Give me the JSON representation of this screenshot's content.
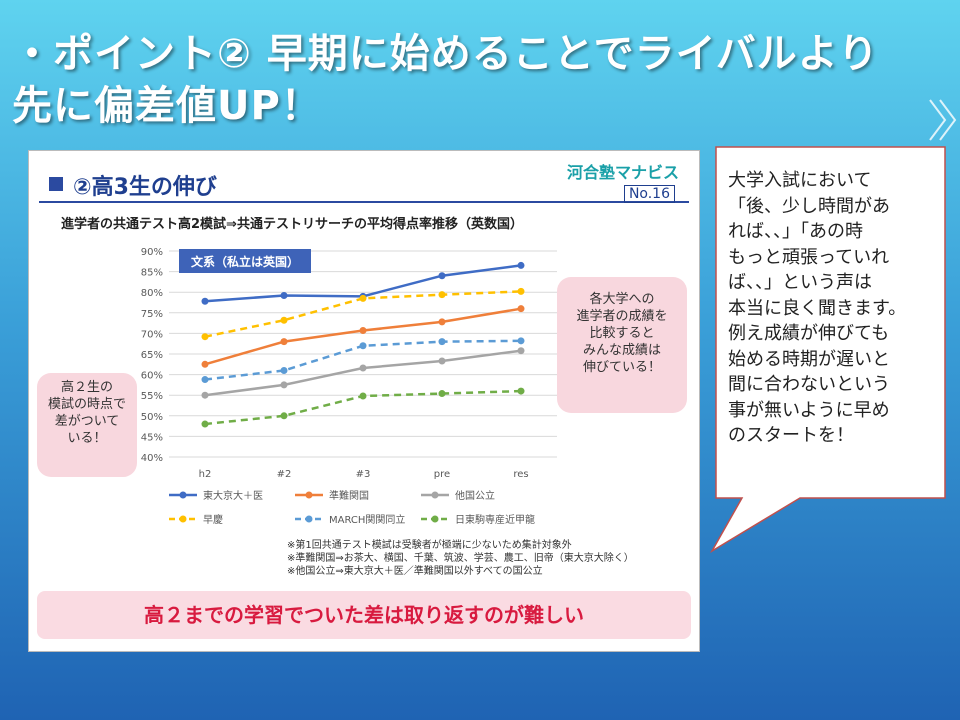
{
  "slide": {
    "title": "・ポイント② 早期に始めることでライバルより先に偏差値UP！"
  },
  "card": {
    "header_title": "②高3生の伸び",
    "logo": "河合塾マナビス",
    "page_no": "No.16",
    "chart_subtitle": "進学者の共通テスト高2模試⇒共通テストリサーチの平均得点率推移（英数国）",
    "bubble_left": [
      "高２生の",
      "模試の時点で",
      "差がついて",
      "いる！"
    ],
    "bubble_right": [
      "各大学への",
      "進学者の成績を",
      "比較すると",
      "みんな成績は",
      "伸びている！"
    ],
    "notes": [
      "※第1回共通テスト模試は受験者が極端に少ないため集計対象外",
      "※準難関国⇒お茶大、横国、千葉、筑波、学芸、農工、旧帝（東大京大除く）",
      "※他国公立⇒東大京大＋医／準難関国以外すべての国公立"
    ],
    "banner": "高２までの学習でついた差は取り返すのが難しい"
  },
  "chart_data": {
    "type": "line",
    "annotation": "文系（私立は英国）",
    "categories": [
      "h2",
      "#2",
      "#3",
      "pre",
      "res"
    ],
    "ylim": [
      40,
      90
    ],
    "yticks": [
      "40%",
      "45%",
      "50%",
      "55%",
      "60%",
      "65%",
      "70%",
      "75%",
      "80%",
      "85%",
      "90%"
    ],
    "series": [
      {
        "name": "東大京大＋医",
        "color": "#3f6cc5",
        "dashed": false,
        "values": [
          77.8,
          79.2,
          79.0,
          84.0,
          86.5
        ]
      },
      {
        "name": "準難関国",
        "color": "#ef7f3a",
        "dashed": false,
        "values": [
          62.5,
          68.0,
          70.7,
          72.8,
          76.0
        ]
      },
      {
        "name": "他国公立",
        "color": "#a5a5a5",
        "dashed": false,
        "values": [
          55.0,
          57.5,
          61.6,
          63.3,
          65.8
        ]
      },
      {
        "name": "早慶",
        "color": "#ffc000",
        "dashed": true,
        "values": [
          69.2,
          73.2,
          78.5,
          79.4,
          80.2
        ]
      },
      {
        "name": "MARCH関関同立",
        "color": "#5b9bd5",
        "dashed": true,
        "values": [
          58.8,
          61.0,
          67.0,
          68.0,
          68.2
        ]
      },
      {
        "name": "日東駒専産近甲龍",
        "color": "#70ad47",
        "dashed": true,
        "values": [
          48.0,
          50.0,
          54.8,
          55.4,
          56.0
        ]
      }
    ]
  },
  "callout": {
    "lines": [
      "大学入試において",
      "「後、少し時間があ",
      "れば、、」「あの時",
      "もっと頑張っていれ",
      "ば、、」という声は",
      "本当に良く聞きます。",
      "例え成績が伸びても",
      "始める時期が遅いと",
      "間に合わないという",
      "事が無いように早め",
      "のスタートを！"
    ]
  }
}
